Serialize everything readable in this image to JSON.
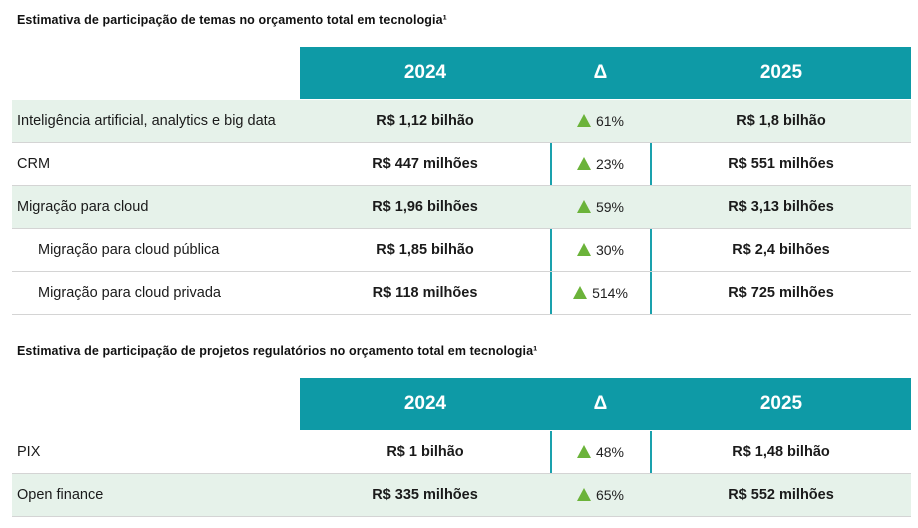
{
  "section1": {
    "title": "Estimativa de participação de temas no orçamento total em tecnologia¹",
    "headers": {
      "col_2024": "2024",
      "col_delta": "Δ",
      "col_2025": "2025"
    },
    "rows": [
      {
        "label": "Inteligência artificial, analytics e big data",
        "v2024": "R$ 1,12 bilhão",
        "delta": "61%",
        "v2025": "R$ 1,8 bilhão"
      },
      {
        "label": "CRM",
        "v2024": "R$ 447 milhões",
        "delta": "23%",
        "v2025": "R$ 551 milhões"
      },
      {
        "label": "Migração para cloud",
        "v2024": "R$ 1,96 bilhões",
        "delta": "59%",
        "v2025": "R$ 3,13 bilhões"
      },
      {
        "label": "Migração para cloud pública",
        "v2024": "R$ 1,85 bilhão",
        "delta": "30%",
        "v2025": "R$ 2,4 bilhões"
      },
      {
        "label": "Migração para cloud privada",
        "v2024": "R$ 118 milhões",
        "delta": "514%",
        "v2025": "R$ 725 milhões"
      }
    ]
  },
  "section2": {
    "title": "Estimativa de participação de projetos regulatórios no orçamento total em tecnologia¹",
    "headers": {
      "col_2024": "2024",
      "col_delta": "Δ",
      "col_2025": "2025"
    },
    "rows": [
      {
        "label": "PIX",
        "v2024": "R$ 1 bilhão",
        "delta": "48%",
        "v2025": "R$ 1,48 bilhão"
      },
      {
        "label": "Open finance",
        "v2024": "R$ 335 milhões",
        "delta": "65%",
        "v2025": "R$ 552 milhões"
      }
    ]
  },
  "colors": {
    "header_bg": "#0e9aa6",
    "shaded_row": "#e6f2ea",
    "arrow_up": "#6bb33a"
  },
  "icons": {
    "delta_indicator": "up-arrow-icon"
  }
}
